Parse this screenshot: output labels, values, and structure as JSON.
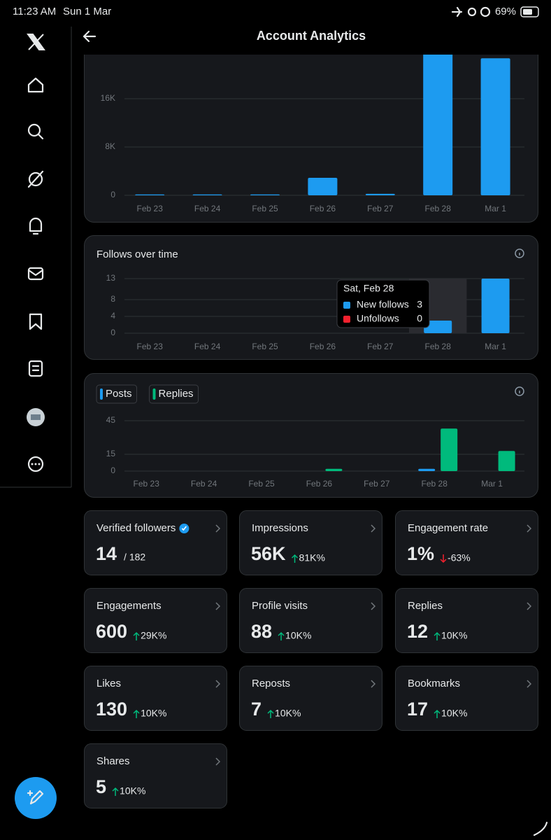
{
  "status_bar": {
    "time": "11:23 AM",
    "date": "Sun 1 Mar",
    "battery": "69%"
  },
  "header": {
    "title": "Account Analytics"
  },
  "chart_data": [
    {
      "type": "bar",
      "categories": [
        "Feb 23",
        "Feb 24",
        "Feb 25",
        "Feb 26",
        "Feb 27",
        "Feb 28",
        "Mar 1"
      ],
      "values": [
        150,
        150,
        150,
        2900,
        250,
        29000,
        22700
      ],
      "color": "#1d9bf0",
      "ylim": [
        0,
        32000
      ],
      "yticks": [
        0,
        {
          "value": 8000,
          "label": "8K"
        },
        {
          "value": 16000,
          "label": "16K"
        }
      ],
      "grid": true
    },
    {
      "type": "bar",
      "title": "Follows over time",
      "categories": [
        "Feb 23",
        "Feb 24",
        "Feb 25",
        "Feb 26",
        "Feb 27",
        "Feb 28",
        "Mar 1"
      ],
      "series": [
        {
          "name": "New follows",
          "color": "#1d9bf0",
          "values": [
            0,
            0,
            0,
            0,
            0,
            3,
            13
          ]
        },
        {
          "name": "Unfollows",
          "color": "#f4212e",
          "values": [
            0,
            0,
            0,
            0,
            0,
            0,
            0
          ]
        }
      ],
      "ylim": [
        0,
        13
      ],
      "yticks": [
        0,
        4,
        8,
        13
      ],
      "grid": true,
      "tooltip": {
        "title": "Sat, Feb 28"
      }
    },
    {
      "type": "grouped-bar",
      "categories": [
        "Feb 23",
        "Feb 24",
        "Feb 25",
        "Feb 26",
        "Feb 27",
        "Feb 28",
        "Mar 1"
      ],
      "series": [
        {
          "name": "Posts",
          "color": "#1d9bf0",
          "values": [
            0,
            0,
            0,
            0,
            0,
            2,
            0
          ]
        },
        {
          "name": "Replies",
          "color": "#00ba7c",
          "values": [
            0,
            0,
            0,
            2,
            0,
            38,
            18
          ]
        }
      ],
      "ylim": [
        0,
        45
      ],
      "yticks": [
        0,
        15,
        45
      ],
      "grid": true,
      "legend": "top-left"
    }
  ],
  "cards": [
    {
      "title": "Verified followers",
      "value": 14,
      "total": "/ 182",
      "verified": true
    },
    {
      "title": "Impressions",
      "value": "56K",
      "change": "81K%",
      "direction": "up"
    },
    {
      "title": "Engagement rate",
      "value": "1%",
      "change": "-63%",
      "direction": "down"
    },
    {
      "title": "Engagements",
      "value": 600,
      "change": "29K%",
      "direction": "up"
    },
    {
      "title": "Profile visits",
      "value": 88,
      "change": "10K%",
      "direction": "up"
    },
    {
      "title": "Replies",
      "value": 12,
      "change": "10K%",
      "direction": "up"
    },
    {
      "title": "Likes",
      "value": 130,
      "change": "10K%",
      "direction": "up"
    },
    {
      "title": "Reposts",
      "value": 7,
      "change": "10K%",
      "direction": "up"
    },
    {
      "title": "Bookmarks",
      "value": 17,
      "change": "10K%",
      "direction": "up"
    },
    {
      "title": "Shares",
      "value": 5,
      "change": "10K%",
      "direction": "up"
    }
  ]
}
